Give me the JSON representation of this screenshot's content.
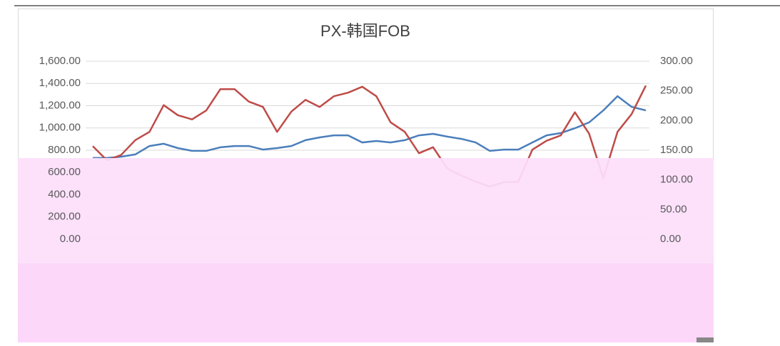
{
  "chart_data": {
    "type": "line",
    "title": "PX-韩国FOB",
    "ylim": [
      0,
      1600
    ],
    "yticks": [
      {
        "value": 0,
        "label": "0.00"
      },
      {
        "value": 200,
        "label": "200.00"
      },
      {
        "value": 400,
        "label": "400.00"
      },
      {
        "value": 600,
        "label": "600.00"
      },
      {
        "value": 800,
        "label": "800.00"
      },
      {
        "value": 1000,
        "label": "1,000.00"
      },
      {
        "value": 1200,
        "label": "1,200.00"
      },
      {
        "value": 1400,
        "label": "1,400.00"
      },
      {
        "value": 1600,
        "label": "1,600.00"
      }
    ],
    "y2lim": [
      0,
      300
    ],
    "y2ticks": [
      {
        "value": 0,
        "label": "0.00"
      },
      {
        "value": 50,
        "label": "50.00"
      },
      {
        "value": 100,
        "label": "100.00"
      },
      {
        "value": 150,
        "label": "150.00"
      },
      {
        "value": 200,
        "label": "200.00"
      },
      {
        "value": 250,
        "label": "250.00"
      },
      {
        "value": 300,
        "label": "300.00"
      }
    ],
    "grid": true,
    "series": [
      {
        "color": "#4a7ebb",
        "values": [
          730,
          730,
          742,
          762,
          838,
          858,
          819,
          794,
          794,
          826,
          838,
          838,
          806,
          819,
          838,
          890,
          915,
          934,
          934,
          870,
          883,
          870,
          890,
          934,
          947,
          922,
          902,
          870,
          794,
          806,
          806,
          870,
          934,
          954,
          998,
          1050,
          1158,
          1286,
          1190,
          1158
        ]
      },
      {
        "color": "#be4b48",
        "axis": "y2",
        "values": [
          157,
          133,
          142,
          167,
          181,
          226,
          209,
          202,
          217,
          253,
          253,
          232,
          223,
          181,
          215,
          235,
          223,
          241,
          247,
          257,
          241,
          197,
          181,
          145,
          155,
          119,
          107,
          97,
          89,
          96,
          97,
          151,
          166,
          175,
          214,
          178,
          103,
          181,
          211,
          259
        ]
      }
    ]
  }
}
